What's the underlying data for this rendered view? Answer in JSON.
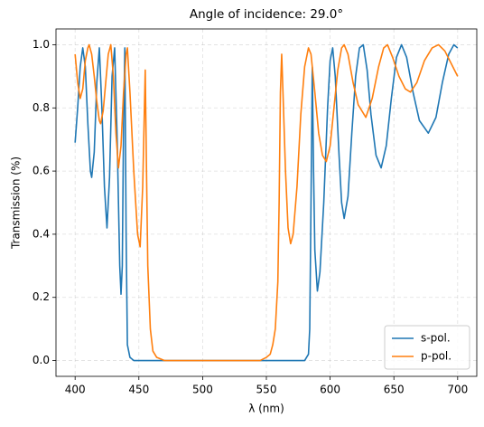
{
  "chart_data": {
    "type": "line",
    "title": "Angle of incidence: 29.0°",
    "xlabel": "λ (nm)",
    "ylabel": "Transmission (%)",
    "xlim": [
      385,
      715
    ],
    "ylim": [
      -0.05,
      1.05
    ],
    "xticks": [
      400,
      450,
      500,
      550,
      600,
      650,
      700
    ],
    "yticks": [
      {
        "value": 0,
        "label": "0.0"
      },
      0.2,
      0.4,
      0.6,
      0.8,
      {
        "value": 1,
        "label": "1.0"
      }
    ],
    "grid": true,
    "legend": "lower right",
    "series": [
      {
        "name": "s-pol.",
        "color": "#1f77b4",
        "x": [
          400,
          402,
          404,
          406,
          408,
          410,
          412,
          413,
          415,
          417,
          419,
          421,
          423,
          425,
          427,
          429,
          431,
          433,
          435,
          436,
          437,
          438,
          439,
          440,
          441,
          443,
          446,
          580,
          583,
          584,
          585,
          586,
          587,
          588,
          590,
          592,
          595,
          598,
          600,
          602,
          604,
          607,
          609,
          611,
          614,
          617,
          620,
          623,
          626,
          629,
          632,
          636,
          640,
          644,
          648,
          652,
          656,
          660,
          665,
          670,
          677,
          683,
          688,
          693,
          697,
          700
        ],
        "values": [
          0.69,
          0.8,
          0.93,
          0.99,
          0.93,
          0.75,
          0.6,
          0.58,
          0.66,
          0.88,
          0.99,
          0.8,
          0.55,
          0.42,
          0.58,
          0.9,
          0.99,
          0.7,
          0.3,
          0.21,
          0.3,
          0.75,
          0.99,
          0.4,
          0.05,
          0.01,
          0,
          0,
          0.02,
          0.1,
          0.5,
          0.93,
          0.6,
          0.35,
          0.22,
          0.28,
          0.5,
          0.8,
          0.95,
          0.99,
          0.9,
          0.65,
          0.5,
          0.45,
          0.52,
          0.72,
          0.9,
          0.99,
          1.0,
          0.92,
          0.78,
          0.65,
          0.61,
          0.68,
          0.83,
          0.96,
          1.0,
          0.96,
          0.85,
          0.76,
          0.72,
          0.77,
          0.88,
          0.97,
          1.0,
          0.99
        ]
      },
      {
        "name": "p-pol.",
        "color": "#ff7f0e",
        "x": [
          400,
          402,
          404,
          406,
          408,
          410,
          411,
          413,
          415,
          417,
          419,
          420,
          422,
          424,
          426,
          428,
          430,
          432,
          434,
          436,
          438,
          440,
          441,
          443,
          446,
          449,
          451,
          453,
          455,
          456,
          457,
          459,
          461,
          464,
          470,
          545,
          550,
          553,
          555,
          557,
          559,
          560,
          561,
          562,
          563,
          565,
          567,
          569,
          571,
          574,
          577,
          580,
          583,
          585,
          588,
          591,
          594,
          597,
          600,
          603,
          606,
          609,
          611,
          614,
          618,
          622,
          628,
          633,
          638,
          642,
          645,
          649,
          654,
          659,
          663,
          668,
          674,
          680,
          685,
          690,
          695,
          700
        ],
        "values": [
          0.97,
          0.88,
          0.83,
          0.86,
          0.95,
          0.99,
          1.0,
          0.97,
          0.9,
          0.82,
          0.76,
          0.75,
          0.79,
          0.88,
          0.97,
          1.0,
          0.9,
          0.72,
          0.61,
          0.68,
          0.85,
          0.97,
          0.99,
          0.85,
          0.6,
          0.4,
          0.36,
          0.55,
          0.92,
          0.6,
          0.3,
          0.1,
          0.03,
          0.01,
          0,
          0,
          0.01,
          0.02,
          0.05,
          0.1,
          0.25,
          0.5,
          0.85,
          0.97,
          0.85,
          0.6,
          0.42,
          0.37,
          0.4,
          0.55,
          0.78,
          0.93,
          0.99,
          0.97,
          0.85,
          0.72,
          0.65,
          0.63,
          0.68,
          0.8,
          0.92,
          0.99,
          1.0,
          0.97,
          0.88,
          0.81,
          0.77,
          0.83,
          0.93,
          0.99,
          1.0,
          0.96,
          0.9,
          0.86,
          0.85,
          0.88,
          0.95,
          0.99,
          1.0,
          0.98,
          0.94,
          0.9
        ]
      }
    ]
  }
}
